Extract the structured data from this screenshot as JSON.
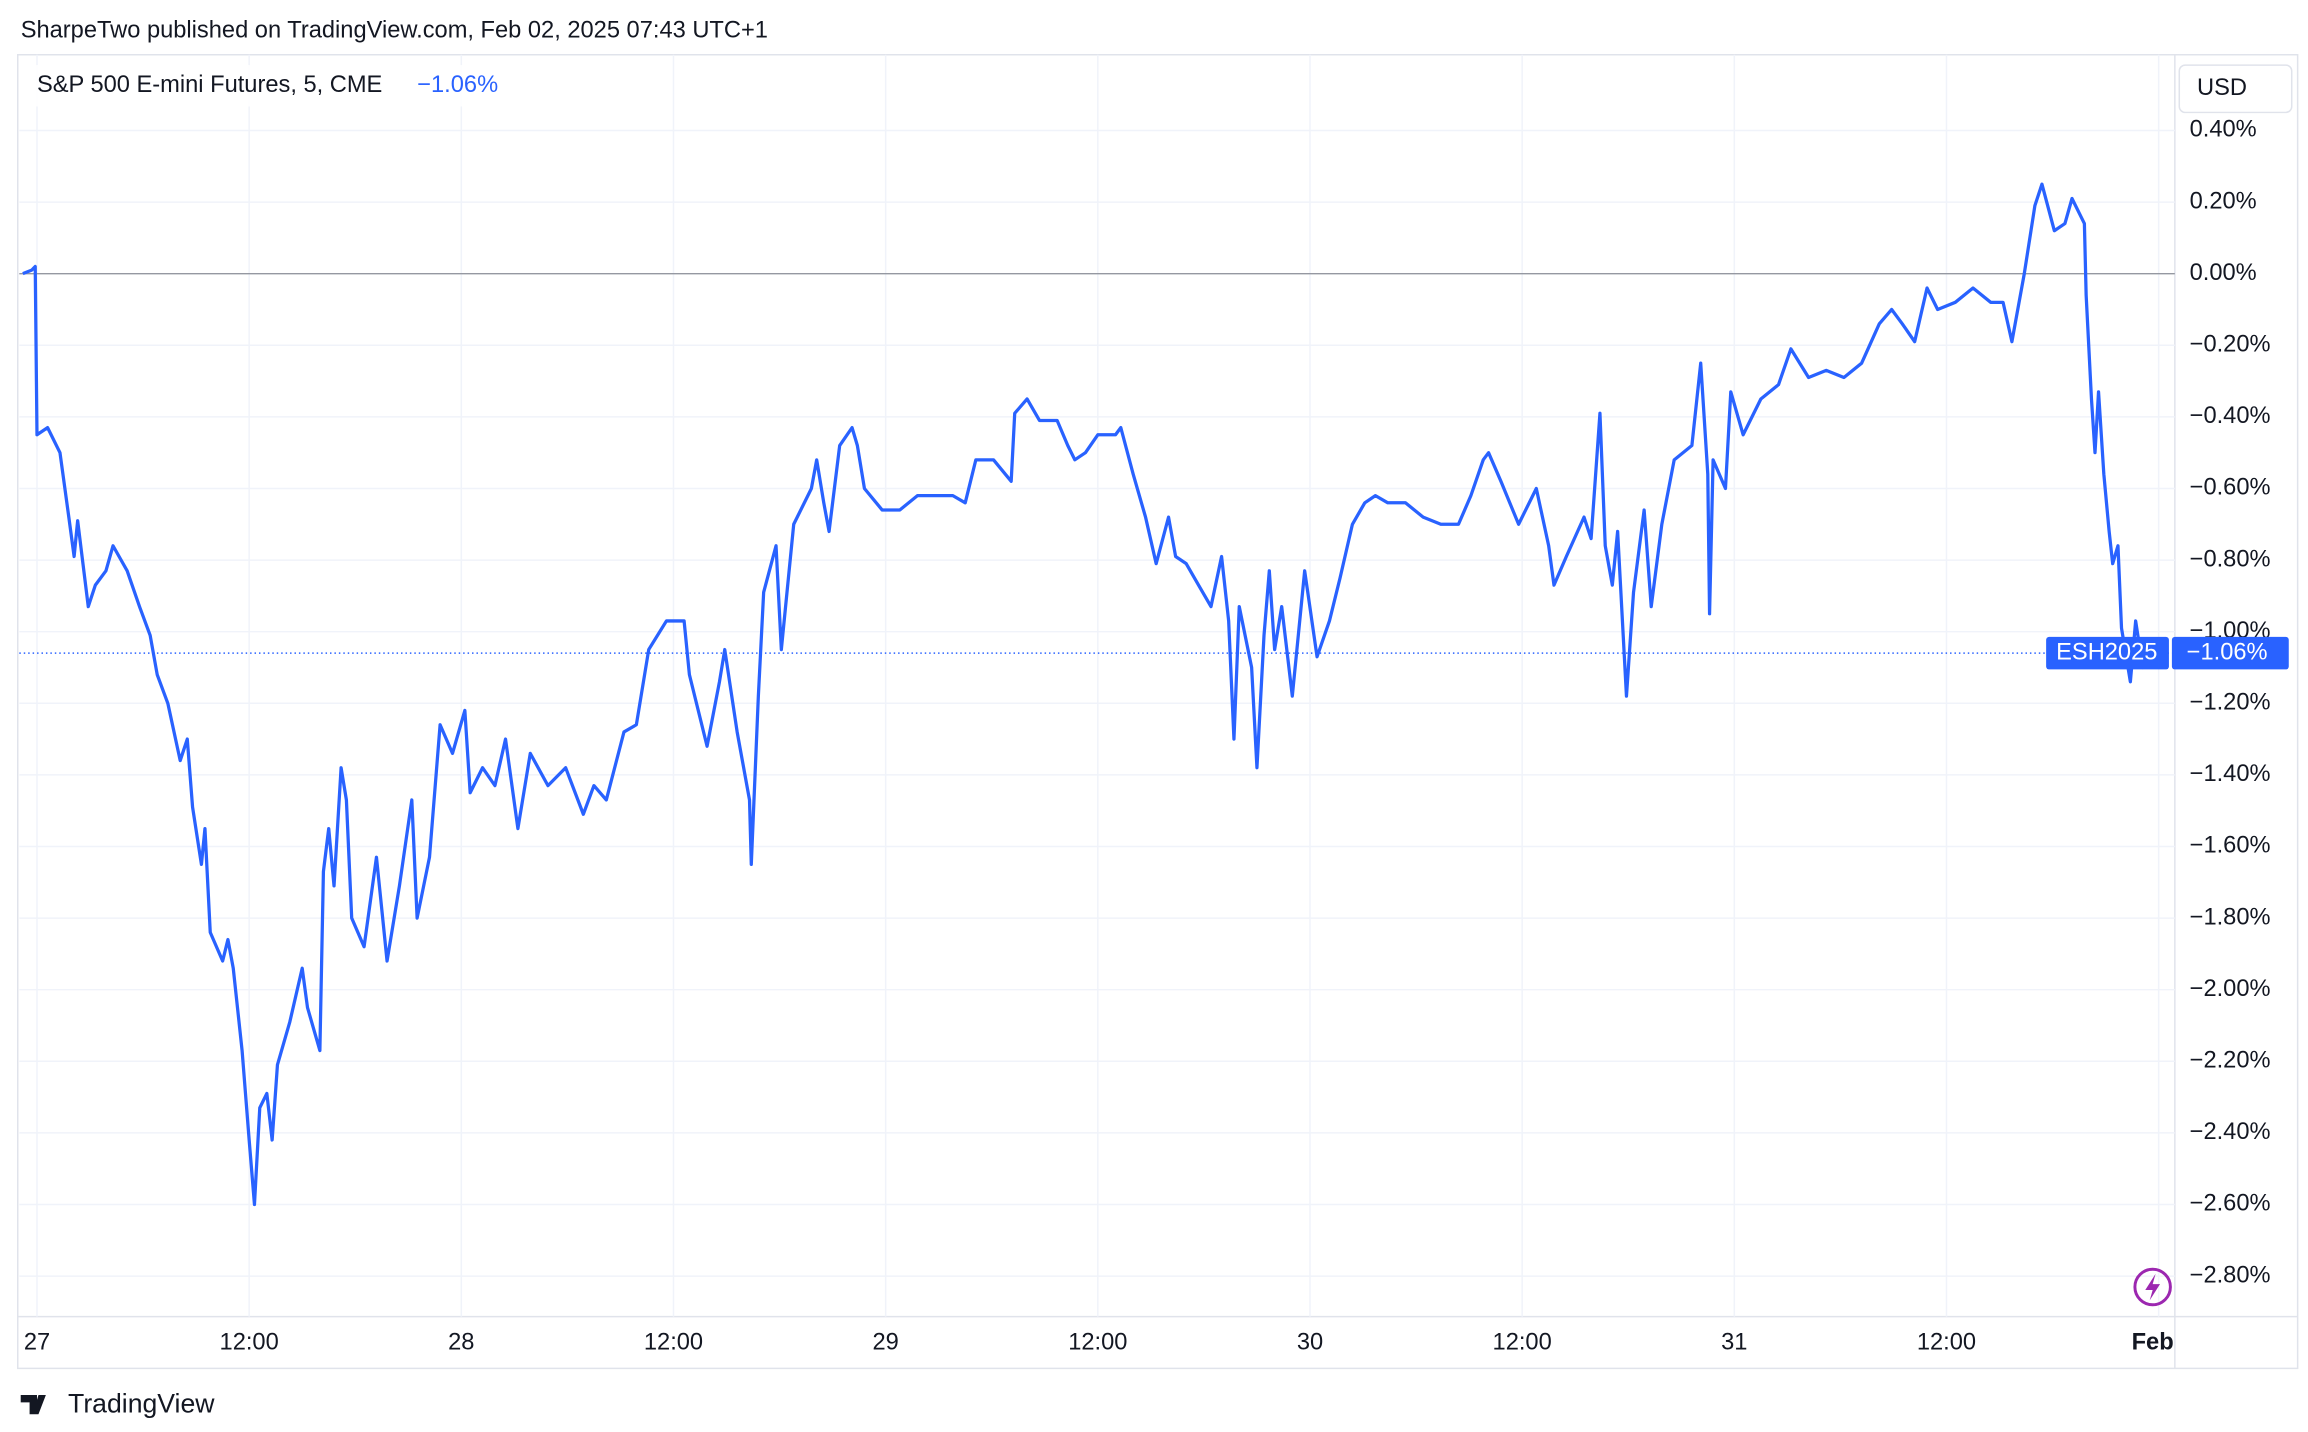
{
  "header": {
    "title": "SharpeTwo published on TradingView.com, Feb 02, 2025 07:43 UTC+1"
  },
  "footer": {
    "brand": "TradingView"
  },
  "chart_data": {
    "type": "line",
    "currency": "USD",
    "legend_change": "−1.06%",
    "symbol_badge": "ESH2025",
    "last_value_label": "−1.06%",
    "zero_line": true,
    "grid": true,
    "series": [
      {
        "name": "S&P 500 E-mini Futures, 5, CME",
        "color": "#2962ff",
        "x": [
          -0.8,
          -0.3,
          -0.1,
          0.0,
          0.6,
          1.3,
          1.8,
          2.1,
          2.3,
          2.6,
          2.9,
          3.3,
          3.9,
          4.3,
          5.1,
          5.8,
          6.4,
          6.8,
          7.4,
          8.1,
          8.5,
          8.8,
          9.3,
          9.5,
          9.8,
          10.5,
          10.8,
          11.1,
          11.6,
          12.0,
          12.3,
          12.6,
          13.0,
          13.3,
          13.6,
          14.3,
          15.0,
          15.3,
          16.0,
          16.2,
          16.5,
          16.8,
          17.2,
          17.5,
          17.8,
          18.5,
          19.2,
          19.8,
          20.5,
          21.2,
          21.5,
          22.2,
          22.8,
          23.5,
          24.2,
          24.5,
          25.2,
          25.9,
          26.5,
          27.2,
          27.9,
          28.9,
          29.9,
          30.9,
          31.5,
          32.2,
          33.2,
          33.9,
          34.6,
          35.6,
          36.6,
          36.9,
          37.6,
          37.9,
          38.6,
          38.9,
          39.6,
          40.3,
          40.4,
          40.8,
          41.1,
          41.8,
          42.1,
          42.8,
          43.8,
          44.1,
          44.5,
          44.8,
          45.4,
          46.1,
          46.4,
          46.8,
          47.8,
          48.8,
          49.8,
          50.8,
          51.8,
          52.5,
          53.1,
          54.1,
          55.1,
          55.3,
          56.0,
          56.7,
          57.7,
          58.3,
          58.7,
          59.3,
          60.0,
          61.0,
          61.3,
          62.0,
          62.7,
          63.3,
          64.0,
          64.4,
          65.0,
          65.7,
          66.4,
          67.0,
          67.4,
          67.7,
          68.0,
          68.7,
          69.0,
          69.4,
          69.7,
          70.0,
          70.4,
          71.0,
          71.7,
          72.4,
          73.1,
          73.7,
          74.4,
          75.1,
          75.7,
          76.4,
          77.4,
          78.4,
          79.4,
          80.4,
          81.1,
          81.8,
          82.1,
          82.8,
          83.8,
          84.8,
          85.5,
          85.8,
          86.5,
          87.5,
          87.9,
          88.4,
          88.7,
          89.1,
          89.4,
          89.9,
          90.3,
          90.9,
          91.3,
          91.9,
          92.6,
          93.6,
          94.1,
          94.5,
          94.6,
          94.8,
          95.5,
          95.8,
          96.5,
          97.5,
          98.5,
          99.2,
          100.2,
          101.2,
          102.2,
          103.2,
          104.2,
          104.9,
          105.5,
          106.2,
          106.9,
          107.5,
          108.5,
          109.5,
          110.5,
          111.2,
          111.7,
          112.4,
          113.0,
          113.4,
          114.1,
          114.7,
          115.1,
          115.8,
          115.9,
          116.2,
          116.4,
          116.6,
          116.9,
          117.2,
          117.4,
          117.7,
          117.9,
          118.4,
          118.7,
          119.1,
          119.7
        ],
        "values": [
          0,
          0.01,
          0.02,
          -0.45,
          -0.43,
          -0.5,
          -0.68,
          -0.79,
          -0.69,
          -0.81,
          -0.93,
          -0.87,
          -0.83,
          -0.76,
          -0.83,
          -0.93,
          -1.01,
          -1.12,
          -1.2,
          -1.36,
          -1.3,
          -1.49,
          -1.65,
          -1.55,
          -1.84,
          -1.92,
          -1.86,
          -1.94,
          -2.17,
          -2.42,
          -2.6,
          -2.33,
          -2.29,
          -2.42,
          -2.21,
          -2.09,
          -1.94,
          -2.05,
          -2.17,
          -1.67,
          -1.55,
          -1.71,
          -1.38,
          -1.47,
          -1.8,
          -1.88,
          -1.63,
          -1.92,
          -1.71,
          -1.47,
          -1.8,
          -1.63,
          -1.26,
          -1.34,
          -1.22,
          -1.45,
          -1.38,
          -1.43,
          -1.3,
          -1.55,
          -1.34,
          -1.43,
          -1.38,
          -1.51,
          -1.43,
          -1.47,
          -1.28,
          -1.26,
          -1.05,
          -0.97,
          -0.97,
          -1.12,
          -1.26,
          -1.32,
          -1.14,
          -1.05,
          -1.28,
          -1.47,
          -1.65,
          -1.18,
          -0.89,
          -0.76,
          -1.05,
          -0.7,
          -0.6,
          -0.52,
          -0.64,
          -0.72,
          -0.48,
          -0.43,
          -0.48,
          -0.6,
          -0.66,
          -0.66,
          -0.62,
          -0.62,
          -0.62,
          -0.64,
          -0.52,
          -0.52,
          -0.58,
          -0.39,
          -0.35,
          -0.41,
          -0.41,
          -0.48,
          -0.52,
          -0.5,
          -0.45,
          -0.45,
          -0.43,
          -0.56,
          -0.68,
          -0.81,
          -0.68,
          -0.79,
          -0.81,
          -0.87,
          -0.93,
          -0.79,
          -0.97,
          -1.3,
          -0.93,
          -1.1,
          -1.38,
          -1.01,
          -0.83,
          -1.05,
          -0.93,
          -1.18,
          -0.83,
          -1.07,
          -0.97,
          -0.85,
          -0.7,
          -0.64,
          -0.62,
          -0.64,
          -0.64,
          -0.68,
          -0.7,
          -0.7,
          -0.62,
          -0.52,
          -0.5,
          -0.58,
          -0.7,
          -0.6,
          -0.76,
          -0.87,
          -0.79,
          -0.68,
          -0.74,
          -0.39,
          -0.76,
          -0.87,
          -0.72,
          -1.18,
          -0.89,
          -0.66,
          -0.93,
          -0.7,
          -0.52,
          -0.48,
          -0.25,
          -0.56,
          -0.95,
          -0.52,
          -0.6,
          -0.33,
          -0.45,
          -0.35,
          -0.31,
          -0.21,
          -0.29,
          -0.27,
          -0.29,
          -0.25,
          -0.14,
          -0.1,
          -0.14,
          -0.19,
          -0.04,
          -0.1,
          -0.08,
          -0.04,
          -0.08,
          -0.08,
          -0.19,
          0.0,
          0.19,
          0.25,
          0.12,
          0.14,
          0.21,
          0.14,
          -0.06,
          -0.35,
          -0.5,
          -0.33,
          -0.56,
          -0.72,
          -0.81,
          -0.76,
          -0.99,
          -1.14,
          -0.97,
          -1.1,
          -1.06
        ]
      }
    ],
    "xlim": [
      -1,
      121
    ],
    "xticks": [
      {
        "value": 0,
        "label": "27"
      },
      {
        "value": 12,
        "label": "12:00"
      },
      {
        "value": 24,
        "label": "28"
      },
      {
        "value": 36,
        "label": "12:00"
      },
      {
        "value": 48,
        "label": "29"
      },
      {
        "value": 60,
        "label": "12:00"
      },
      {
        "value": 72,
        "label": "30"
      },
      {
        "value": 84,
        "label": "12:00"
      },
      {
        "value": 96,
        "label": "31"
      },
      {
        "value": 108,
        "label": "12:00"
      },
      {
        "value": 120,
        "label": "Feb"
      }
    ],
    "ylim": [
      -2.9,
      0.6
    ],
    "yticks": [
      {
        "value": 0.4,
        "label": "0.40%"
      },
      {
        "value": 0.2,
        "label": "0.20%"
      },
      {
        "value": 0,
        "label": "0.00%"
      },
      {
        "value": -0.2,
        "label": "−0.20%"
      },
      {
        "value": -0.4,
        "label": "−0.40%"
      },
      {
        "value": -0.6,
        "label": "−0.60%"
      },
      {
        "value": -0.8,
        "label": "−0.80%"
      },
      {
        "value": -1.0,
        "label": "−1.00%"
      },
      {
        "value": -1.2,
        "label": "−1.20%"
      },
      {
        "value": -1.4,
        "label": "−1.40%"
      },
      {
        "value": -1.6,
        "label": "−1.60%"
      },
      {
        "value": -1.8,
        "label": "−1.80%"
      },
      {
        "value": -2.0,
        "label": "−2.00%"
      },
      {
        "value": -2.2,
        "label": "−2.20%"
      },
      {
        "value": -2.4,
        "label": "−2.40%"
      },
      {
        "value": -2.6,
        "label": "−2.60%"
      },
      {
        "value": -2.8,
        "label": "−2.80%"
      }
    ]
  }
}
